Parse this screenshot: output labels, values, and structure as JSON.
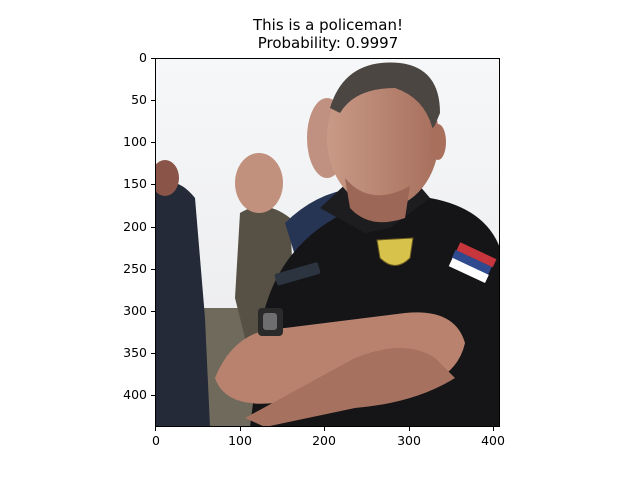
{
  "figure": {
    "title_line1": "This is a policeman!",
    "title_line2": "Probability: 0.9997"
  },
  "image": {
    "width": 408,
    "height": 437
  },
  "axes": {
    "xticks": [
      0,
      100,
      200,
      300,
      400
    ],
    "yticks": [
      0,
      50,
      100,
      150,
      200,
      250,
      300,
      350,
      400
    ]
  },
  "colors": {
    "sky": "#f3f4f6",
    "shirt": "#151517",
    "skin": "#b8826e",
    "hair": "#4b4642"
  }
}
